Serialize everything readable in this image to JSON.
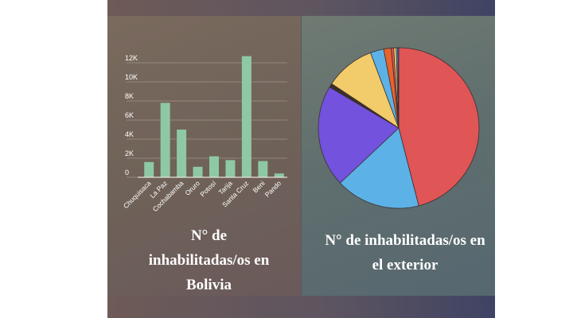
{
  "colors": {
    "bar": "#8ec8a4",
    "grid": "#b8aaa0",
    "pie": [
      "#e05556",
      "#5cb2e6",
      "#7352de",
      "#3a2f2a",
      "#f2cb6a",
      "#5cb2e6",
      "#e8622e",
      "#e05556",
      "#f2cb6a",
      "#5cb2e6",
      "#7352de"
    ]
  },
  "bar_chart": {
    "caption_lines": [
      "N° de",
      "inhabilitadas/os en",
      "Bolivia"
    ]
  },
  "pie_chart": {
    "caption_lines": [
      "N° de inhabilitadas/os en",
      "el exterior"
    ]
  },
  "chart_data": [
    {
      "type": "bar",
      "categories": [
        "Chuquisaca",
        "La Paz",
        "Cochabamba",
        "Oruro",
        "Potosí",
        "Tarija",
        "Santa Cruz",
        "Beni",
        "Pando"
      ],
      "values": [
        1600,
        7800,
        5000,
        1100,
        2200,
        1800,
        12700,
        1700,
        400
      ],
      "ylim": [
        0,
        12000
      ],
      "yticks": [
        0,
        2000,
        4000,
        6000,
        8000,
        10000,
        12000
      ],
      "ytick_labels": [
        "0",
        "2K",
        "4K",
        "6K",
        "8K",
        "10K",
        "12K"
      ],
      "grid": true,
      "title": "N° de inhabilitadas/os en Bolivia"
    },
    {
      "type": "pie",
      "values": [
        46.0,
        17.0,
        20.5,
        0.8,
        10.0,
        2.7,
        1.5,
        0.5,
        0.5,
        0.3,
        0.2
      ],
      "title": "N° de inhabilitadas/os en el exterior"
    }
  ]
}
